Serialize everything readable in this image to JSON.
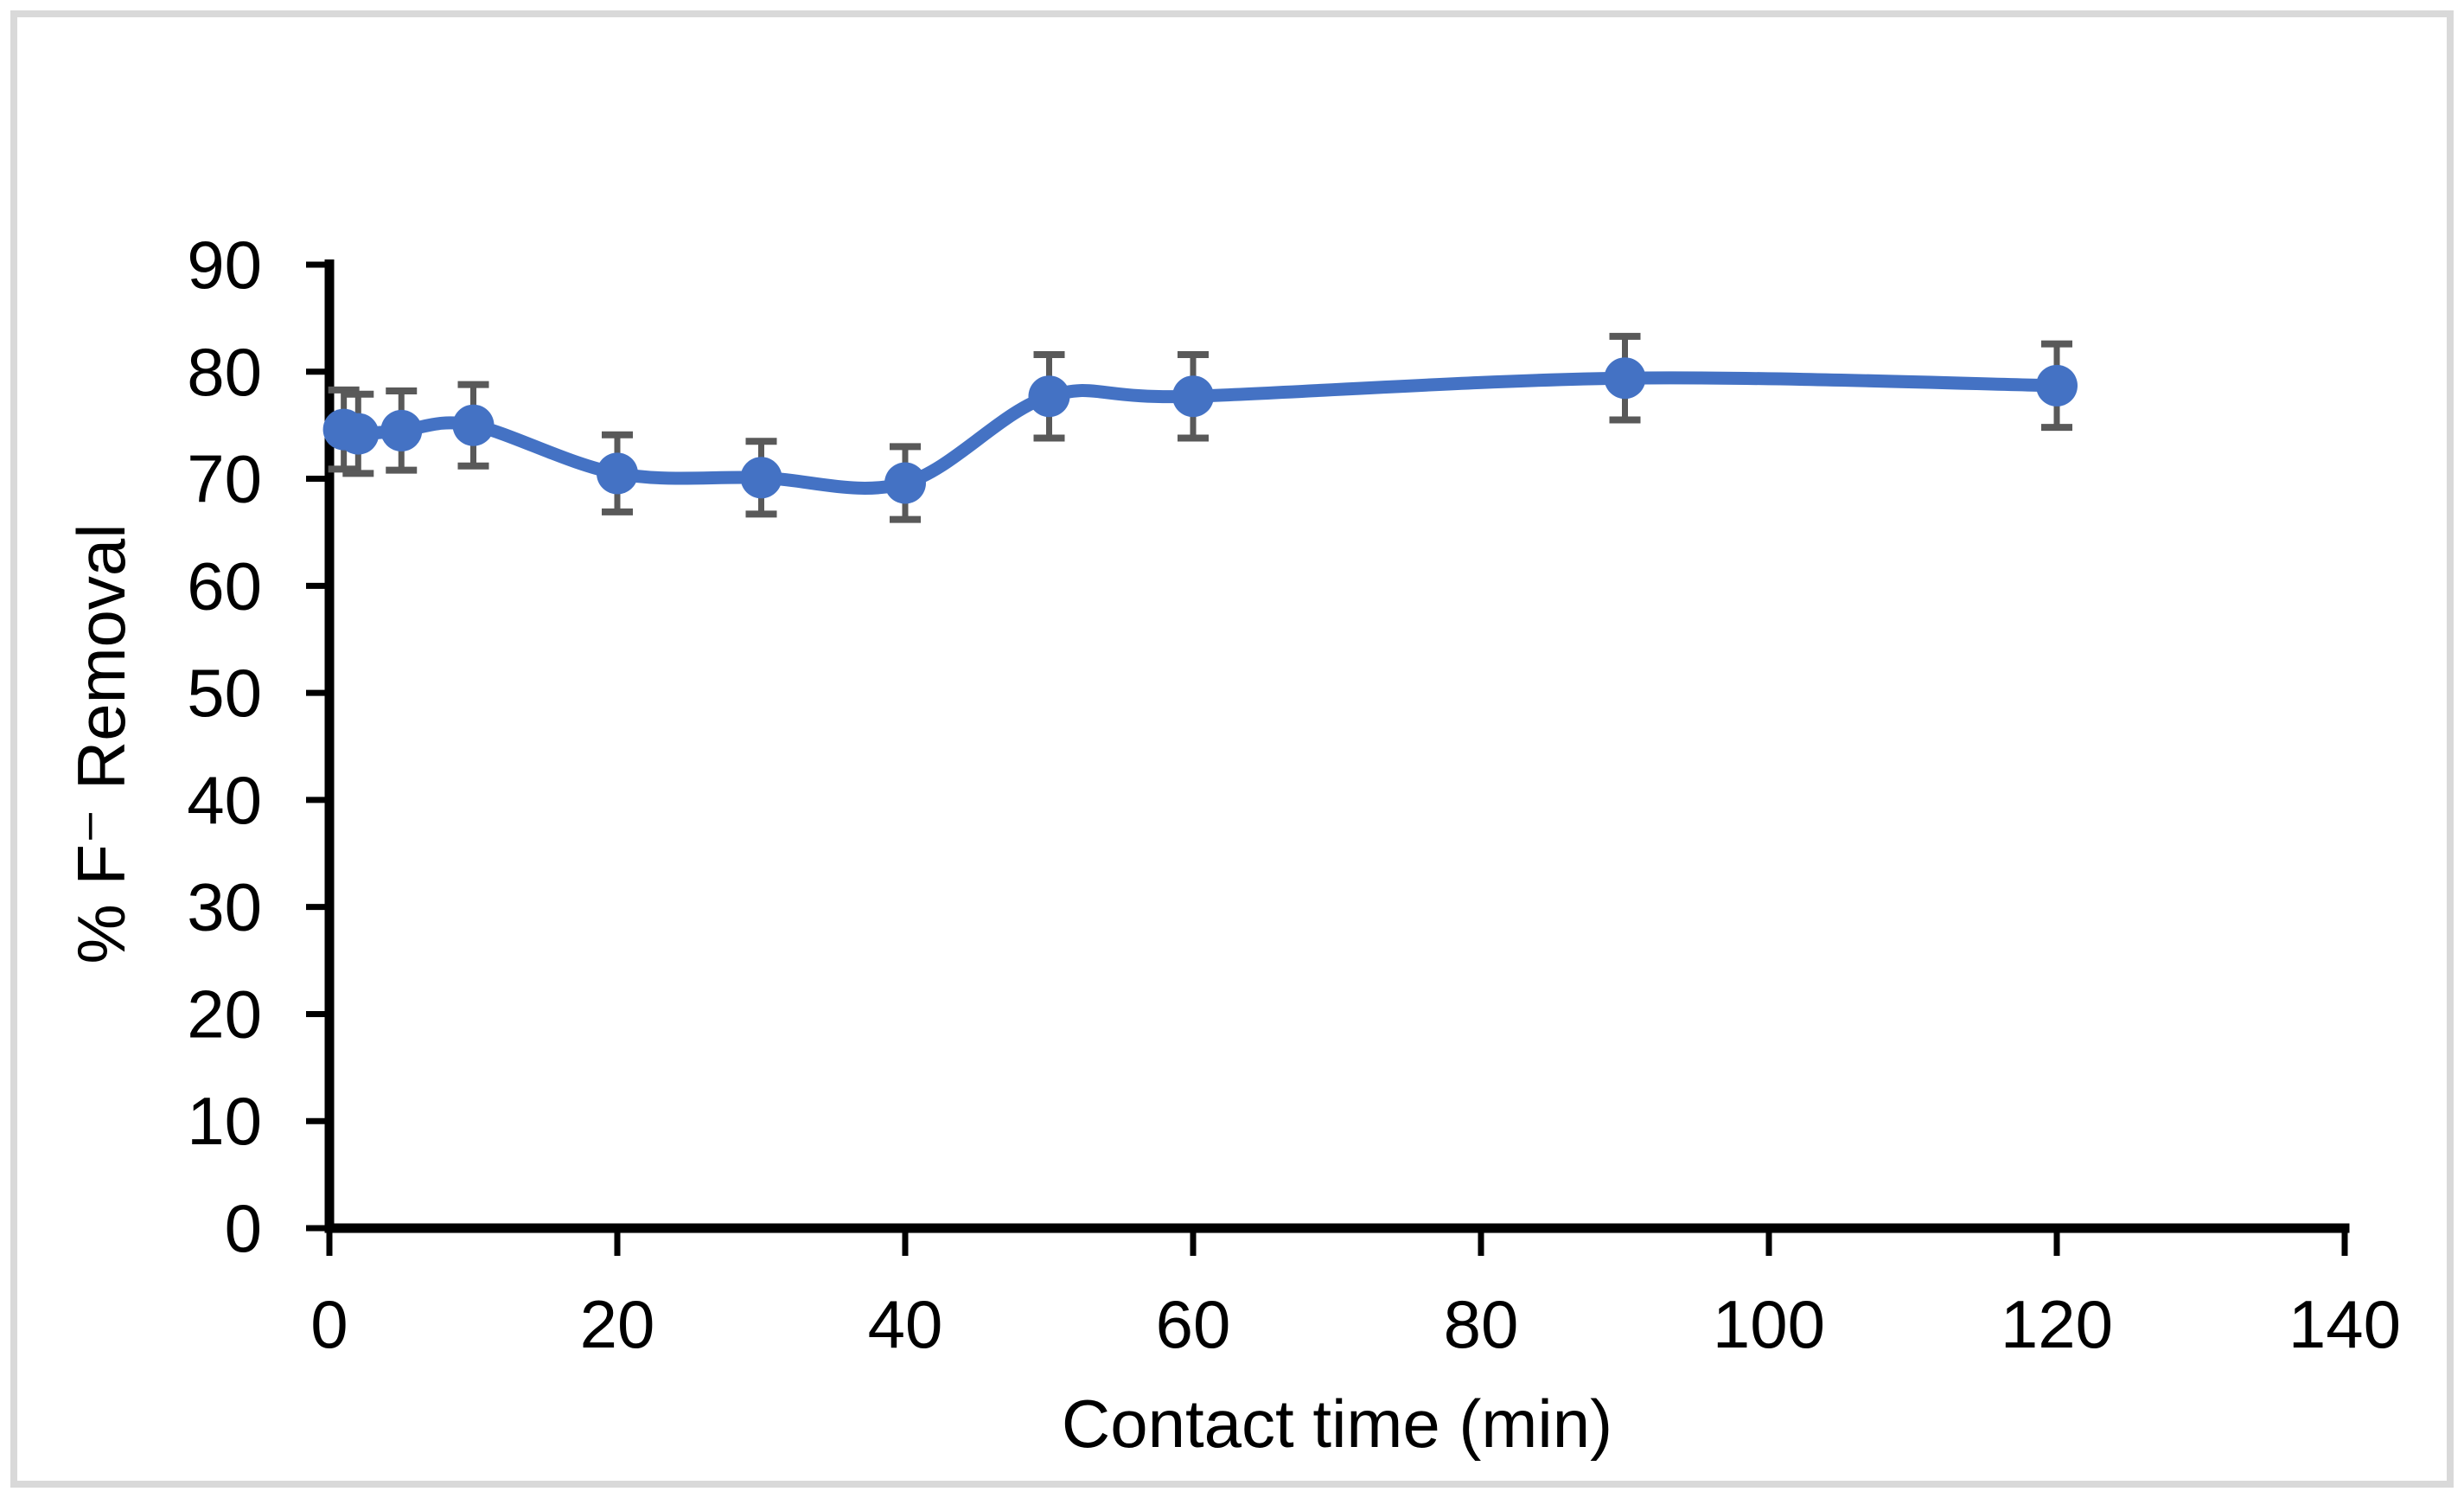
{
  "chart_data": {
    "type": "line",
    "title": "",
    "xlabel": "Contact time (min)",
    "ylabel": "% F⁻ Removal",
    "x": [
      1,
      2,
      5,
      10,
      20,
      30,
      40,
      50,
      60,
      90,
      120
    ],
    "y": [
      74.6,
      74.2,
      74.5,
      75.0,
      70.5,
      70.1,
      69.6,
      77.7,
      77.7,
      79.4,
      78.7
    ],
    "y_err": [
      3.7,
      3.7,
      3.7,
      3.8,
      3.6,
      3.4,
      3.4,
      3.9,
      3.9,
      3.9,
      3.9
    ],
    "xlim": [
      0,
      140
    ],
    "ylim": [
      0,
      90
    ],
    "x_ticks": [
      0,
      20,
      40,
      60,
      80,
      100,
      120,
      140
    ],
    "y_ticks": [
      0,
      10,
      20,
      30,
      40,
      50,
      60,
      70,
      80,
      90
    ],
    "grid": false,
    "legend": false,
    "smooth_line": true,
    "marker": "circle",
    "colors": {
      "line": "#4472C4",
      "marker": "#4472C4",
      "error_bar": "#595959",
      "axis": "#000000",
      "tick_label": "#000000",
      "frame_border": "#D9D9D9"
    }
  }
}
